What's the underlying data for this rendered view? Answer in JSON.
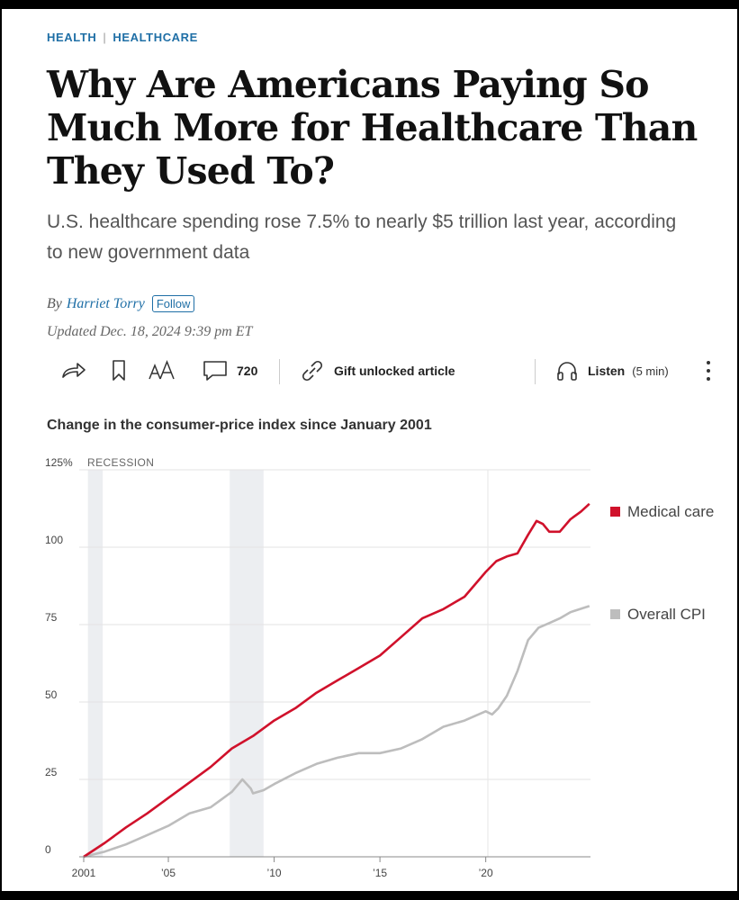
{
  "article": {
    "kicker_1": "HEALTH",
    "kicker_sep": "|",
    "kicker_2": "HEALTHCARE",
    "headline": "Why Are Americans Paying So Much More for Healthcare Than They Used To?",
    "dek": "U.S. healthcare spending rose 7.5% to nearly $5 trillion last year, according to new government data",
    "byline_prefix": "By",
    "author": "Harriet Torry",
    "follow_label": "Follow",
    "updated": "Updated Dec. 18, 2024 9:39 pm ET"
  },
  "toolbar": {
    "comment_count": "720",
    "gift_label": "Gift unlocked article",
    "listen_label": "Listen",
    "listen_duration": "(5 min)"
  },
  "colors": {
    "accent": "#1f6fa6",
    "medical": "#d0112b",
    "cpi": "#bdbdbd",
    "recession": "#eceef1"
  },
  "chart_data": {
    "type": "line",
    "title": "Change in the consumer-price index since January 2001",
    "ylabel_unit": "%",
    "recession_label": "RECESSION",
    "xlim": [
      2001,
      2024.95
    ],
    "ylim": [
      0,
      125
    ],
    "yticks": [
      0,
      25,
      50,
      75,
      100,
      125
    ],
    "ytick_labels": [
      "0",
      "25",
      "50",
      "75",
      "100",
      "125%"
    ],
    "xticks": [
      2001,
      2005,
      2010,
      2015,
      2020
    ],
    "xtick_labels": [
      "2001",
      "’05",
      "’10",
      "’15",
      "’20"
    ],
    "recessions": [
      [
        2001.2,
        2001.9
      ],
      [
        2007.9,
        2009.5
      ]
    ],
    "series": [
      {
        "name": "Medical care",
        "x": [
          2001,
          2002,
          2003,
          2004,
          2005,
          2006,
          2007,
          2008,
          2009,
          2010,
          2011,
          2012,
          2013,
          2014,
          2015,
          2016,
          2017,
          2018,
          2019,
          2020,
          2020.5,
          2021,
          2021.5,
          2022,
          2022.4,
          2022.7,
          2023,
          2023.5,
          2024,
          2024.5,
          2024.9
        ],
        "y": [
          0,
          4.5,
          9.5,
          14,
          19,
          24,
          29,
          35,
          39,
          44,
          48,
          53,
          57,
          61,
          65,
          71,
          77,
          80,
          84,
          92,
          95.5,
          97,
          98,
          104,
          108.5,
          107.5,
          105,
          105,
          109,
          111.5,
          114
        ]
      },
      {
        "name": "Overall CPI",
        "x": [
          2001,
          2002,
          2003,
          2004,
          2005,
          2006,
          2007,
          2007.5,
          2008,
          2008.5,
          2008.9,
          2009,
          2009.5,
          2010,
          2011,
          2012,
          2013,
          2014,
          2015,
          2016,
          2017,
          2018,
          2019,
          2020,
          2020.3,
          2020.6,
          2021,
          2021.5,
          2022,
          2022.5,
          2023,
          2023.5,
          2024,
          2024.9
        ],
        "y": [
          0,
          1.7,
          4,
          7,
          10,
          14,
          16,
          18.5,
          21,
          25,
          22,
          20.5,
          21.5,
          23.5,
          27,
          30,
          32,
          33.5,
          33.5,
          35,
          38,
          42,
          44,
          47,
          46,
          48,
          52,
          60,
          70,
          74,
          75.5,
          77,
          79,
          81
        ]
      }
    ],
    "legend_placement": "right"
  }
}
